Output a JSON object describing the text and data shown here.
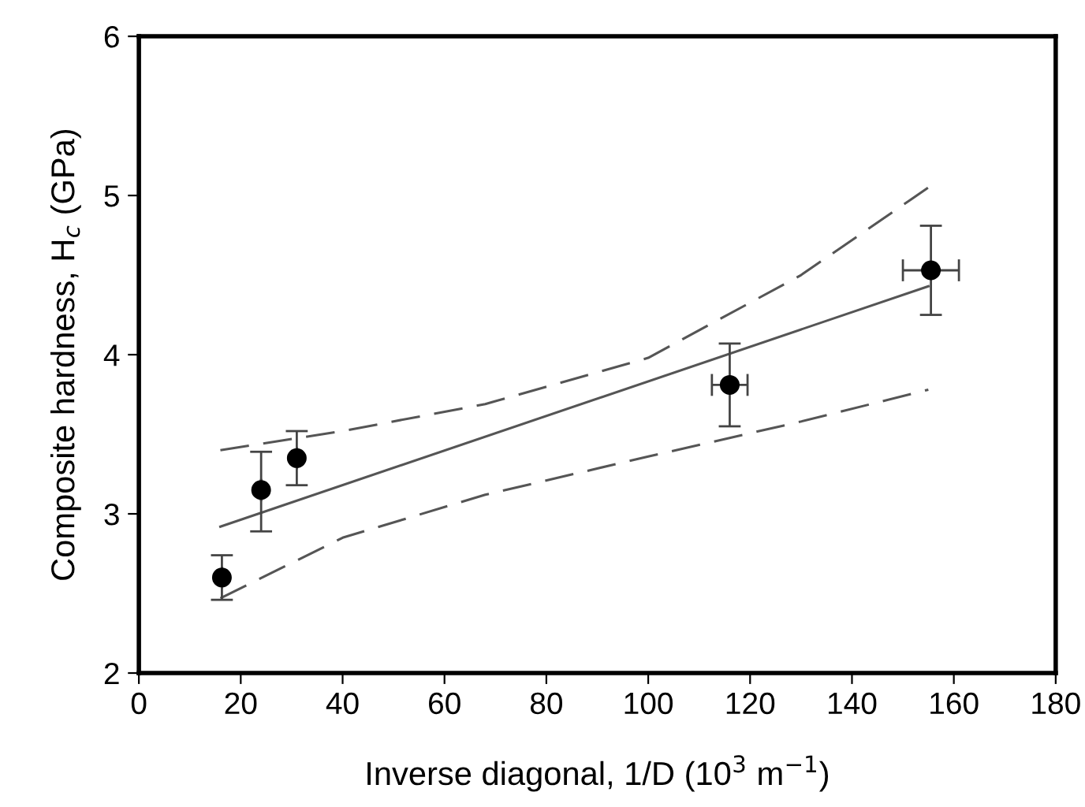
{
  "chart_data": {
    "type": "scatter",
    "xlabel": "Inverse diagonal, 1/D (10$^{3}$ m$^{−1}$)",
    "ylabel": "Composite hardness, H$_{c}$ (GPa)",
    "xlim": [
      0,
      180
    ],
    "xticks": [
      0,
      20,
      40,
      60,
      80,
      100,
      120,
      140,
      160,
      180
    ],
    "ylim": [
      2,
      6
    ],
    "yticks": [
      2,
      3,
      4,
      5,
      6
    ],
    "grid": false,
    "legend": false,
    "series": [
      {
        "color": "#000000",
        "marker": "circle",
        "x": [
          16.3,
          24,
          31,
          116,
          155.5
        ],
        "values": [
          2.6,
          3.15,
          3.35,
          3.81,
          4.53
        ],
        "errors": [
          [
            2.46,
            2.74
          ],
          [
            2.89,
            3.39
          ],
          [
            3.18,
            3.52
          ],
          [
            3.55,
            4.07
          ],
          [
            4.25,
            4.81
          ]
        ],
        "xerrors": [
          null,
          null,
          null,
          3.5,
          5.5
        ]
      },
      {
        "type": "line",
        "color": "#555555",
        "line_style": "solid",
        "marker": "none",
        "x": [
          16,
          155
        ],
        "values": [
          2.92,
          4.43
        ]
      },
      {
        "type": "line",
        "color": "#555555",
        "line_style": "dashed",
        "marker": "none",
        "x": [
          16,
          40,
          68,
          100,
          130,
          155
        ],
        "values": [
          3.4,
          3.52,
          3.69,
          3.98,
          4.5,
          5.05
        ]
      },
      {
        "type": "line",
        "color": "#555555",
        "line_style": "dashed",
        "marker": "none",
        "x": [
          16,
          40,
          68,
          100,
          130,
          155
        ],
        "values": [
          2.47,
          2.85,
          3.12,
          3.36,
          3.58,
          3.78
        ]
      }
    ]
  }
}
